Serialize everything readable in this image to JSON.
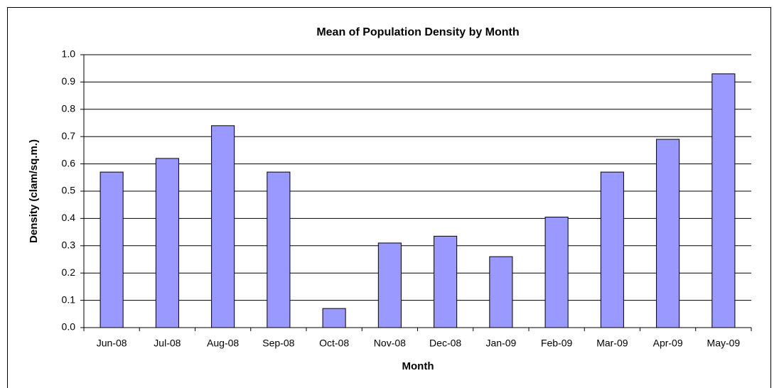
{
  "chart_data": {
    "type": "bar",
    "title": "Mean of Population Density by Month",
    "x_label": "Month",
    "y_label": "Density (clam/sq.m.)",
    "categories": [
      "Jun-08",
      "Jul-08",
      "Aug-08",
      "Sep-08",
      "Oct-08",
      "Nov-08",
      "Dec-08",
      "Jan-09",
      "Feb-09",
      "Mar-09",
      "Apr-09",
      "May-09"
    ],
    "values": [
      0.57,
      0.62,
      0.74,
      0.57,
      0.07,
      0.31,
      0.335,
      0.26,
      0.405,
      0.57,
      0.69,
      0.93
    ],
    "color": "#9999ff",
    "ylim": [
      0,
      1
    ],
    "yticks": [
      {
        "value": 0,
        "label": "0.0"
      },
      0.1,
      0.2,
      0.3,
      0.4,
      0.5,
      0.6,
      0.7,
      0.8,
      0.9,
      {
        "value": 1,
        "label": "1.0"
      }
    ],
    "grid": true
  }
}
